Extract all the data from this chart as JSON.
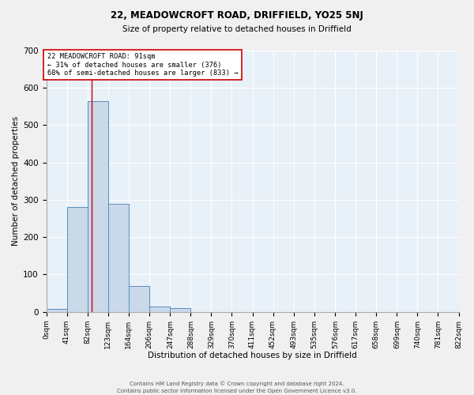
{
  "title_main": "22, MEADOWCROFT ROAD, DRIFFIELD, YO25 5NJ",
  "title_sub": "Size of property relative to detached houses in Driffield",
  "xlabel": "Distribution of detached houses by size in Driffield",
  "ylabel": "Number of detached properties",
  "footnote1": "Contains HM Land Registry data © Crown copyright and database right 2024.",
  "footnote2": "Contains public sector information licensed under the Open Government Licence v3.0.",
  "bin_edges": [
    0,
    41,
    82,
    123,
    164,
    206,
    247,
    288,
    329,
    370,
    411,
    452,
    493,
    535,
    576,
    617,
    658,
    699,
    740,
    781,
    822
  ],
  "bar_heights": [
    8,
    280,
    565,
    290,
    70,
    15,
    10,
    0,
    0,
    0,
    0,
    0,
    0,
    0,
    0,
    0,
    0,
    0,
    0,
    0
  ],
  "bar_facecolor": "#c9d9ea",
  "bar_edgecolor": "#5b8db8",
  "background_color": "#e8f0f8",
  "fig_background_color": "#f0f0f0",
  "grid_color": "#ffffff",
  "vline_x": 91,
  "vline_color": "#cc0000",
  "annotation_text": "22 MEADOWCROFT ROAD: 91sqm\n← 31% of detached houses are smaller (376)\n68% of semi-detached houses are larger (833) →",
  "annotation_box_color": "#ffffff",
  "annotation_box_edgecolor": "#cc0000",
  "ylim": [
    0,
    700
  ],
  "yticks": [
    0,
    100,
    200,
    300,
    400,
    500,
    600,
    700
  ],
  "tick_labels": [
    "0sqm",
    "41sqm",
    "82sqm",
    "123sqm",
    "164sqm",
    "206sqm",
    "247sqm",
    "288sqm",
    "329sqm",
    "370sqm",
    "411sqm",
    "452sqm",
    "493sqm",
    "535sqm",
    "576sqm",
    "617sqm",
    "658sqm",
    "699sqm",
    "740sqm",
    "781sqm",
    "822sqm"
  ]
}
